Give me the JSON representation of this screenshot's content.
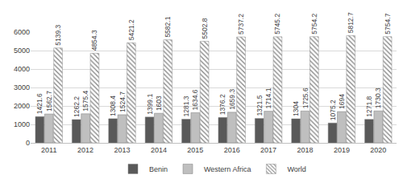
{
  "chart_data": {
    "type": "bar",
    "categories": [
      "2011",
      "2012",
      "2013",
      "2014",
      "2015",
      "2016",
      "2017",
      "2018",
      "2019",
      "2020"
    ],
    "series": [
      {
        "name": "Benin",
        "color": "#595959",
        "values": [
          1421.6,
          1262.2,
          1308.4,
          1399.1,
          1281.3,
          1376.2,
          1321.5,
          1304,
          1075.2,
          1271.8
        ]
      },
      {
        "name": "Western Africa",
        "color": "#bfbfbf",
        "values": [
          1562.7,
          1575.4,
          1524.7,
          1603,
          1634.6,
          1659.3,
          1714.1,
          1725.6,
          1694,
          1730.3
        ]
      },
      {
        "name": "World",
        "color": "#8c8c8c",
        "marker": "hatch",
        "values": [
          5139.3,
          4854.3,
          5421.2,
          5582.1,
          5502.8,
          5737.2,
          5745.2,
          5754.2,
          5812.7,
          5754.7
        ]
      }
    ],
    "ylim": [
      0,
      6000
    ],
    "yticks": [
      0,
      1000,
      2000,
      3000,
      4000,
      5000,
      6000
    ],
    "grid": true,
    "legend": "bottom",
    "data_labels": true
  }
}
